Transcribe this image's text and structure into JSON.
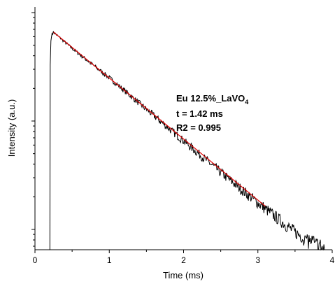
{
  "chart_data": {
    "type": "line",
    "xlabel": "Time (ms)",
    "ylabel": "Intensity (a.u.)",
    "xlim": [
      0,
      4
    ],
    "ylim_description": "logarithmic intensity, no tick labels",
    "x_ticks": [
      "0",
      "1",
      "2",
      "3",
      "4"
    ],
    "y_scale": "log",
    "grid": false,
    "annotations": {
      "sample_main": "Eu 12.5%_LaVO",
      "sample_sub": "4",
      "lifetime": "t = 1.42 ms",
      "r2": "R2 = 0.995"
    },
    "series": [
      {
        "role": "measured decay",
        "color": "#000000",
        "x": [
          0.2,
          0.21,
          0.23,
          0.25,
          0.5,
          1.0,
          1.5,
          2.0,
          2.5,
          3.0,
          3.5,
          3.9
        ],
        "y_relative_log": [
          0.0,
          0.9,
          0.99,
          1.0,
          0.925,
          0.79,
          0.645,
          0.5,
          0.355,
          0.215,
          0.08,
          0.0
        ]
      },
      {
        "role": "exponential fit",
        "color": "#ff0000",
        "x": [
          0.25,
          3.1
        ],
        "y_relative_log": [
          1.0,
          0.2
        ]
      }
    ]
  }
}
